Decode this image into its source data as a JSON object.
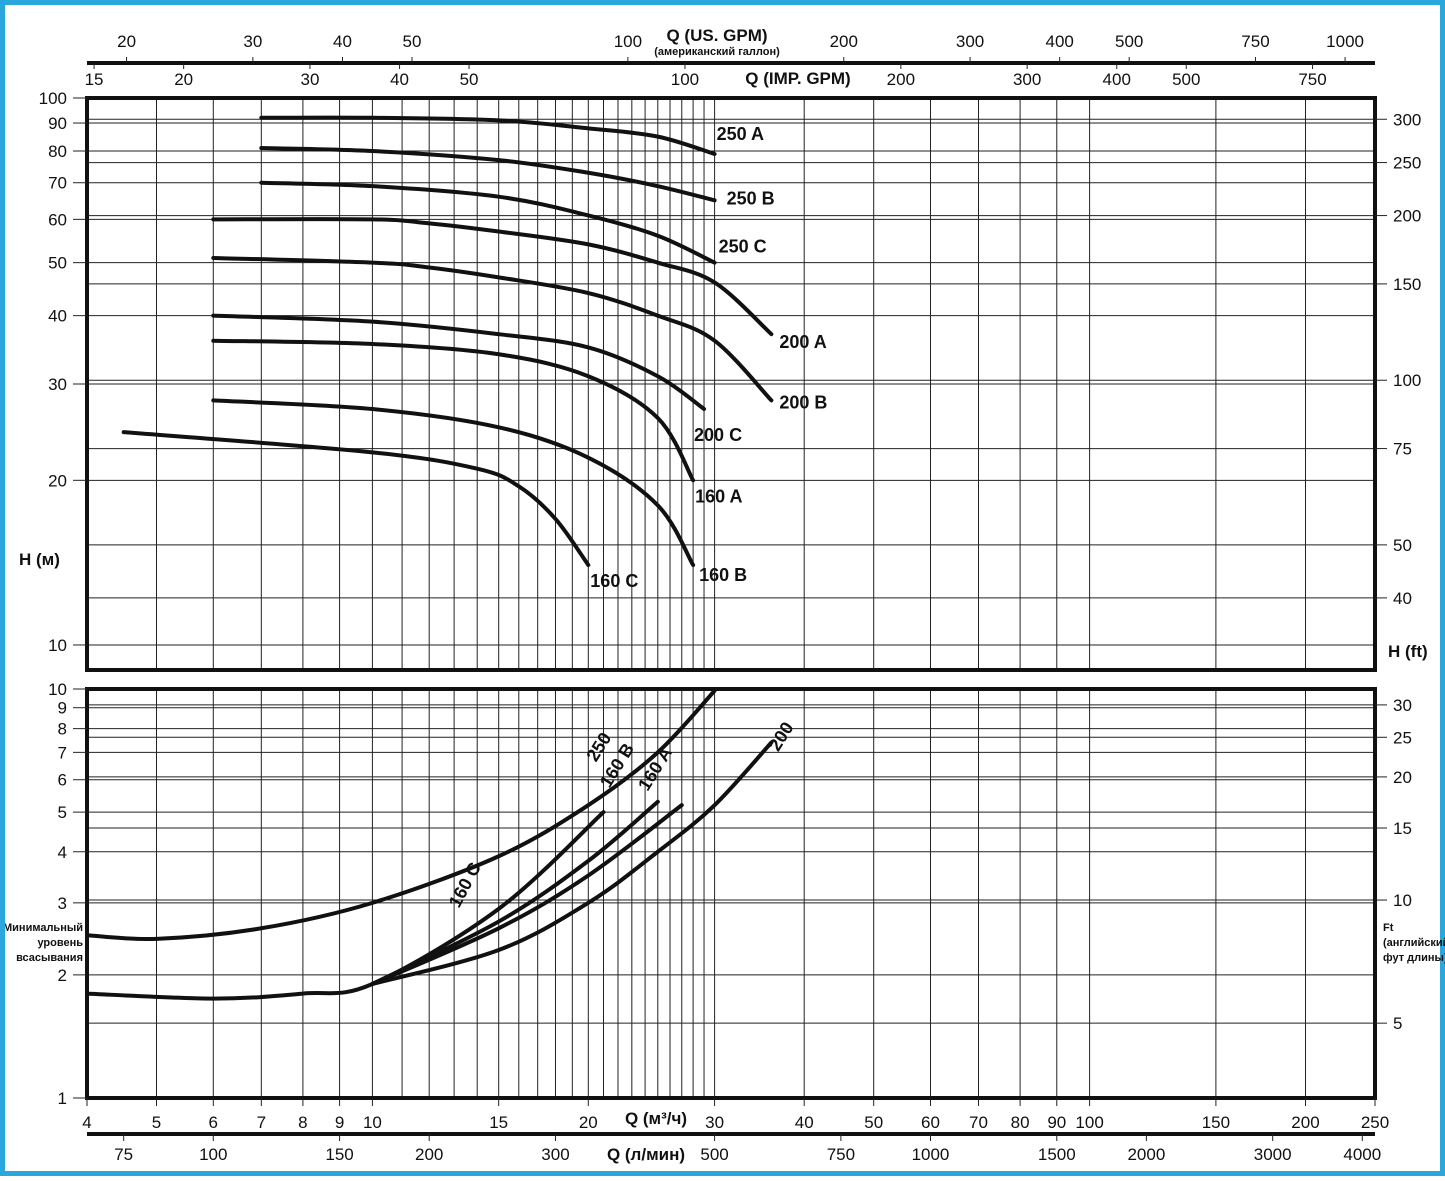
{
  "chart_data": [
    {
      "type": "line",
      "panel": "head",
      "ylabel": "H (м)",
      "ylabel_right": "H (ft)",
      "xlabel": "Q (м³/ч)",
      "x_scale": "log",
      "y_scale": "log",
      "xlim": [
        4,
        250
      ],
      "ylim": [
        9,
        100
      ],
      "y_ticks": [
        10,
        20,
        30,
        40,
        50,
        60,
        70,
        80,
        90,
        100
      ],
      "y_ticks_right": [
        40,
        50,
        75,
        100,
        150,
        200,
        250,
        300
      ],
      "grid": true,
      "series": [
        {
          "name": "250 A",
          "x": [
            7,
            10,
            15,
            20,
            25,
            30
          ],
          "y": [
            92,
            92,
            91,
            88,
            85,
            79
          ]
        },
        {
          "name": "250 B",
          "x": [
            7,
            10,
            15,
            20,
            25,
            30
          ],
          "y": [
            81,
            80,
            77,
            73,
            69,
            65
          ]
        },
        {
          "name": "250 C",
          "x": [
            7,
            10,
            15,
            20,
            25,
            30
          ],
          "y": [
            70,
            69,
            66,
            61,
            56,
            50
          ]
        },
        {
          "name": "200 A",
          "x": [
            6,
            10,
            12,
            15,
            20,
            25,
            30,
            36
          ],
          "y": [
            60,
            60,
            59,
            57,
            54,
            50,
            46,
            37
          ]
        },
        {
          "name": "200 B",
          "x": [
            6,
            10,
            12,
            15,
            20,
            25,
            30,
            36
          ],
          "y": [
            51,
            50,
            49,
            47,
            44,
            40,
            36,
            28
          ]
        },
        {
          "name": "200 C",
          "x": [
            6,
            10,
            15,
            20,
            25,
            29
          ],
          "y": [
            40,
            39,
            37,
            35,
            31,
            27
          ]
        },
        {
          "name": "160 A",
          "x": [
            6,
            10,
            15,
            20,
            25,
            28
          ],
          "y": [
            36,
            35.5,
            34,
            31,
            26,
            20
          ]
        },
        {
          "name": "160 B",
          "x": [
            6,
            10,
            15,
            20,
            25,
            28
          ],
          "y": [
            28,
            27,
            25,
            22,
            18,
            14
          ]
        },
        {
          "name": "160 C",
          "x": [
            4.5,
            10,
            14,
            16,
            18,
            20
          ],
          "y": [
            24.5,
            22.5,
            21,
            19.5,
            17,
            14
          ]
        }
      ]
    },
    {
      "type": "line",
      "panel": "npsh",
      "ylabel": "Минимальный уровень всасывания",
      "ylabel_right": "Ft (английский фут длины)",
      "xlabel": "Q (м³/ч)",
      "x_scale": "log",
      "y_scale": "log",
      "xlim": [
        4,
        250
      ],
      "ylim": [
        1,
        10
      ],
      "y_ticks": [
        1,
        2,
        3,
        4,
        5,
        6,
        7,
        8,
        9,
        10
      ],
      "y_ticks_right": [
        5,
        10,
        15,
        20,
        25,
        30
      ],
      "grid": true,
      "series": [
        {
          "name": "250",
          "x": [
            4,
            5,
            7,
            10,
            15,
            20,
            25,
            30
          ],
          "y": [
            2.5,
            2.45,
            2.6,
            3.0,
            3.9,
            5.2,
            7.0,
            9.9
          ]
        },
        {
          "name": "160 C",
          "x": [
            4,
            6,
            8,
            10,
            15,
            21
          ],
          "y": [
            1.8,
            1.75,
            1.8,
            1.9,
            2.9,
            5.0
          ]
        },
        {
          "name": "160 B",
          "x": [
            10,
            15,
            20,
            25
          ],
          "y": [
            1.9,
            2.7,
            3.8,
            5.3
          ]
        },
        {
          "name": "160 A",
          "x": [
            10,
            15,
            20,
            27
          ],
          "y": [
            1.9,
            2.6,
            3.5,
            5.2
          ]
        },
        {
          "name": "200",
          "x": [
            10,
            15,
            20,
            25,
            30,
            36
          ],
          "y": [
            1.9,
            2.3,
            3.0,
            4.0,
            5.2,
            7.4
          ]
        }
      ]
    }
  ],
  "axes": {
    "top_us_title": "Q (US. GPM)",
    "top_us_sub": "(американский галлон)",
    "top_us_ticks": [
      "20",
      "30",
      "40",
      "50",
      "100",
      "200",
      "300",
      "400",
      "500",
      "750",
      "1000"
    ],
    "top_imp_title": "Q (IMP. GPM)",
    "top_imp_ticks": [
      "15",
      "20",
      "30",
      "40",
      "50",
      "100",
      "200",
      "300",
      "400",
      "500",
      "750"
    ],
    "bottom_m3_title": "Q (м³/ч)",
    "bottom_m3_ticks": [
      "4",
      "5",
      "6",
      "7",
      "8",
      "9",
      "10",
      "15",
      "20",
      "30",
      "40",
      "50",
      "60",
      "70",
      "80",
      "90",
      "100",
      "150",
      "200",
      "250"
    ],
    "bottom_lmin_title": "Q (л/мин)",
    "bottom_lmin_ticks": [
      "75",
      "100",
      "150",
      "200",
      "300",
      "500",
      "750",
      "1000",
      "1500",
      "2000",
      "3000",
      "4000"
    ],
    "head_left_title": "H (м)",
    "head_right_title": "H (ft)",
    "npsh_left_title": [
      "Минимальный",
      "уровень",
      "всасывания"
    ],
    "npsh_right_title": [
      "Ft",
      "(английский",
      "фут длины)"
    ]
  }
}
